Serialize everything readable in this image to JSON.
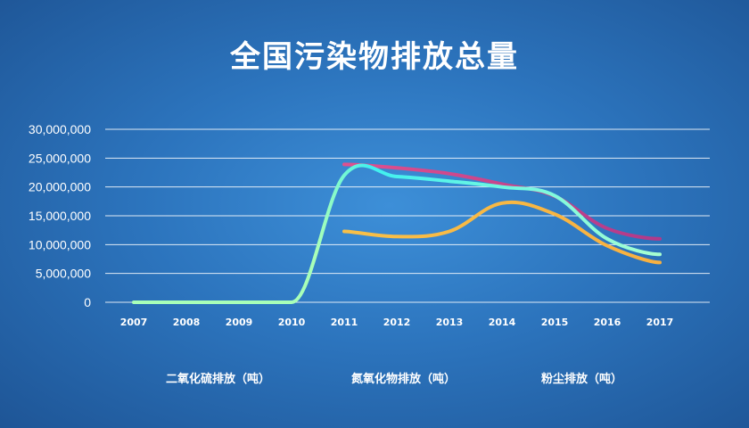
{
  "chart_data": {
    "type": "line",
    "title": "全国污染物排放总量",
    "xlabel": "",
    "ylabel": "",
    "categories": [
      "2007",
      "2008",
      "2009",
      "2010",
      "2011",
      "2012",
      "2013",
      "2014",
      "2015",
      "2016",
      "2017"
    ],
    "y_tick_labels": [
      "30,000,000",
      "25,000,000",
      "20,000,000",
      "15,000,000",
      "10,000,000",
      "5,000,000",
      "0"
    ],
    "ylim": [
      0,
      30000000
    ],
    "grid": true,
    "legend_position": "bottom",
    "series": [
      {
        "name": "二氧化硫排放（吨）",
        "color": "#5ff5e0",
        "color_end": "#a8ffb8",
        "values": [
          0,
          0,
          0,
          0,
          22000000,
          21800000,
          21000000,
          20000000,
          18500000,
          11000000,
          8300000
        ]
      },
      {
        "name": "氮氧化物排放（吨）",
        "color": "#e0508e",
        "color_end": "#b03a8a",
        "values": [
          null,
          null,
          null,
          null,
          23900000,
          23300000,
          22300000,
          20500000,
          18400000,
          12800000,
          11000000
        ]
      },
      {
        "name": "粉尘排放（吨）",
        "color": "#f8c048",
        "color_end": "#f8b040",
        "values": [
          null,
          null,
          null,
          null,
          12300000,
          11400000,
          12300000,
          17200000,
          15300000,
          9800000,
          6900000
        ]
      }
    ]
  }
}
